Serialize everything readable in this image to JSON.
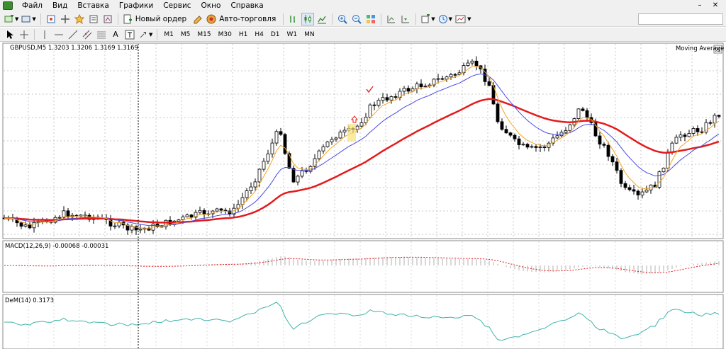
{
  "menu": {
    "items": [
      "Файл",
      "Вид",
      "Вставка",
      "Графики",
      "Сервис",
      "Окно",
      "Справка"
    ]
  },
  "toolbar": {
    "new_order_label": "Новый ордер",
    "auto_trading_label": "Авто-торговля"
  },
  "timeframes": [
    "M1",
    "M5",
    "M15",
    "M30",
    "H1",
    "H4",
    "D1",
    "W1",
    "MN"
  ],
  "chart": {
    "symbol_info": "GBPUSD,M5  1.3203 1.3206 1.3169 1.3169",
    "indicator_name": "Moving Average",
    "colors": {
      "ma_fast": "#f5a623",
      "ma_mid": "#4a4ae8",
      "ma_slow": "#e41a1c",
      "macd_signal": "#e41a1c",
      "macd_hist": "#b0b0b0",
      "dem_line": "#3cb4a8",
      "candle_bull_fill": "#ffffff",
      "candle_bear_fill": "#000000"
    },
    "cursor_x_label": "",
    "buy_marker": "up-arrow-icon",
    "check_marker": "checkmark-icon"
  },
  "macd": {
    "label": "MACD(12,26,9) -0.00068 -0.00031"
  },
  "dem": {
    "label": "DeM(14) 0.3173"
  }
}
